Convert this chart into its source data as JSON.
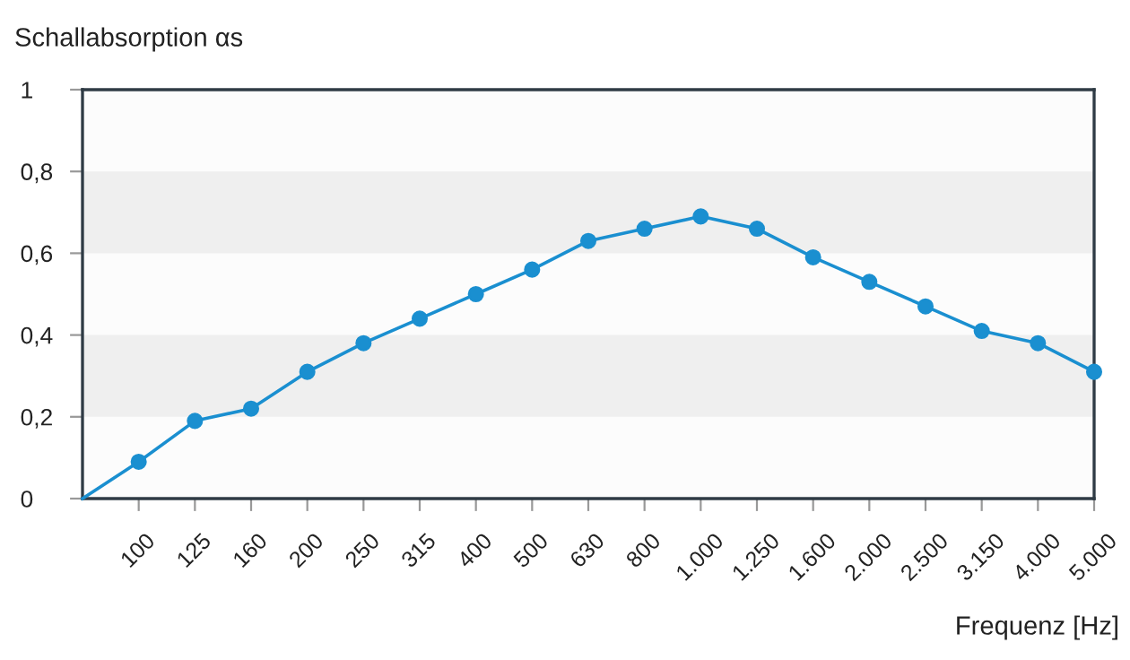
{
  "chart_data": {
    "type": "line",
    "ylabel": "Schallabsorption αs",
    "xlabel": "Frequenz [Hz]",
    "categories": [
      null,
      "100",
      "125",
      "160",
      "200",
      "250",
      "315",
      "400",
      "500",
      "630",
      "800",
      "1.000",
      "1.250",
      "1.600",
      "2.000",
      "2.500",
      "3.150",
      "4.000",
      "5.000"
    ],
    "series": [
      {
        "color": "#1a8fd0",
        "values": [
          0,
          0.09,
          0.19,
          0.22,
          0.31,
          0.38,
          0.44,
          0.5,
          0.56,
          0.63,
          0.66,
          0.69,
          0.66,
          0.59,
          0.53,
          0.47,
          0.41,
          0.38,
          0.31
        ]
      }
    ],
    "ylim": [
      0,
      1
    ],
    "yticks": [
      0,
      {
        "value": 0.2,
        "label": "0,2"
      },
      {
        "value": 0.4,
        "label": "0,4"
      },
      {
        "value": 0.6,
        "label": "0,6"
      },
      {
        "value": 0.8,
        "label": "0,8"
      },
      1
    ],
    "bands": [
      {
        "axis": "y",
        "from": 0.2,
        "to": 0.4,
        "color": "#efefef"
      },
      {
        "axis": "y",
        "from": 0.6,
        "to": 0.8,
        "color": "#efefef"
      }
    ],
    "marker": "circle",
    "line_style": "solid",
    "grid": false,
    "legend": false
  }
}
